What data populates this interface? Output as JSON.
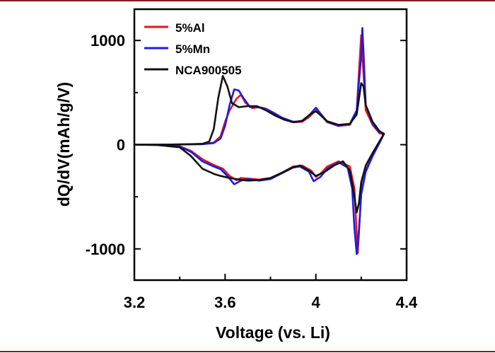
{
  "chart_data": {
    "type": "line",
    "title": "",
    "xlabel": "Voltage (vs. Li)",
    "ylabel": "dQ/dV(mAh/g/V)",
    "xlim": [
      3.2,
      4.4
    ],
    "ylim": [
      -1300,
      1300
    ],
    "xticks": [
      {
        "value": 3.2,
        "label": "3.2"
      },
      {
        "value": 3.6,
        "label": "3.6"
      },
      {
        "value": 4.0,
        "label": "4"
      },
      {
        "value": 4.4,
        "label": "4.4"
      }
    ],
    "xticks_minor": [
      3.4,
      3.8,
      4.2
    ],
    "yticks": [
      {
        "value": 1000,
        "label": "1000"
      },
      {
        "value": 0,
        "label": "0"
      },
      {
        "value": -1000,
        "label": "-1000"
      }
    ],
    "yticks_minor": [
      500,
      -500
    ],
    "legend_position": "top-left",
    "series": [
      {
        "name": "5%Al",
        "color": "#e8141c",
        "points": [
          [
            3.2,
            0
          ],
          [
            3.3,
            0
          ],
          [
            3.4,
            2
          ],
          [
            3.5,
            5
          ],
          [
            3.55,
            20
          ],
          [
            3.58,
            80
          ],
          [
            3.6,
            220
          ],
          [
            3.62,
            330
          ],
          [
            3.65,
            440
          ],
          [
            3.67,
            480
          ],
          [
            3.69,
            400
          ],
          [
            3.72,
            350
          ],
          [
            3.75,
            360
          ],
          [
            3.78,
            345
          ],
          [
            3.82,
            300
          ],
          [
            3.86,
            245
          ],
          [
            3.9,
            215
          ],
          [
            3.94,
            220
          ],
          [
            3.97,
            265
          ],
          [
            4.0,
            330
          ],
          [
            4.02,
            290
          ],
          [
            4.05,
            215
          ],
          [
            4.1,
            180
          ],
          [
            4.15,
            190
          ],
          [
            4.18,
            320
          ],
          [
            4.19,
            700
          ],
          [
            4.2,
            1050
          ],
          [
            4.21,
            680
          ],
          [
            4.22,
            330
          ],
          [
            4.25,
            190
          ],
          [
            4.28,
            110
          ],
          [
            4.3,
            100
          ],
          [
            4.3,
            100
          ],
          [
            4.28,
            20
          ],
          [
            4.25,
            -100
          ],
          [
            4.22,
            -250
          ],
          [
            4.2,
            -450
          ],
          [
            4.19,
            -850
          ],
          [
            4.185,
            -1040
          ],
          [
            4.18,
            -850
          ],
          [
            4.17,
            -420
          ],
          [
            4.15,
            -210
          ],
          [
            4.1,
            -160
          ],
          [
            4.05,
            -210
          ],
          [
            4.02,
            -280
          ],
          [
            4.0,
            -310
          ],
          [
            3.98,
            -250
          ],
          [
            3.94,
            -200
          ],
          [
            3.9,
            -210
          ],
          [
            3.85,
            -270
          ],
          [
            3.8,
            -320
          ],
          [
            3.75,
            -335
          ],
          [
            3.7,
            -325
          ],
          [
            3.67,
            -320
          ],
          [
            3.65,
            -340
          ],
          [
            3.62,
            -300
          ],
          [
            3.59,
            -230
          ],
          [
            3.55,
            -195
          ],
          [
            3.5,
            -140
          ],
          [
            3.45,
            -60
          ],
          [
            3.4,
            -15
          ],
          [
            3.3,
            -2
          ],
          [
            3.2,
            0
          ]
        ]
      },
      {
        "name": "5%Mn",
        "color": "#1c1ce6",
        "points": [
          [
            3.2,
            0
          ],
          [
            3.3,
            0
          ],
          [
            3.4,
            2
          ],
          [
            3.5,
            5
          ],
          [
            3.55,
            15
          ],
          [
            3.58,
            60
          ],
          [
            3.6,
            180
          ],
          [
            3.62,
            380
          ],
          [
            3.64,
            530
          ],
          [
            3.66,
            520
          ],
          [
            3.68,
            450
          ],
          [
            3.71,
            360
          ],
          [
            3.74,
            360
          ],
          [
            3.77,
            350
          ],
          [
            3.8,
            320
          ],
          [
            3.85,
            260
          ],
          [
            3.9,
            220
          ],
          [
            3.94,
            225
          ],
          [
            3.97,
            280
          ],
          [
            4.0,
            355
          ],
          [
            4.02,
            300
          ],
          [
            4.05,
            220
          ],
          [
            4.1,
            180
          ],
          [
            4.15,
            200
          ],
          [
            4.18,
            330
          ],
          [
            4.19,
            600
          ],
          [
            4.2,
            850
          ],
          [
            4.205,
            1120
          ],
          [
            4.21,
            900
          ],
          [
            4.22,
            380
          ],
          [
            4.25,
            200
          ],
          [
            4.28,
            120
          ],
          [
            4.3,
            105
          ],
          [
            4.3,
            105
          ],
          [
            4.28,
            15
          ],
          [
            4.25,
            -110
          ],
          [
            4.22,
            -260
          ],
          [
            4.2,
            -480
          ],
          [
            4.19,
            -820
          ],
          [
            4.18,
            -1050
          ],
          [
            4.17,
            -800
          ],
          [
            4.16,
            -420
          ],
          [
            4.14,
            -220
          ],
          [
            4.1,
            -170
          ],
          [
            4.05,
            -230
          ],
          [
            4.02,
            -310
          ],
          [
            3.99,
            -350
          ],
          [
            3.97,
            -260
          ],
          [
            3.93,
            -210
          ],
          [
            3.9,
            -220
          ],
          [
            3.85,
            -275
          ],
          [
            3.8,
            -330
          ],
          [
            3.75,
            -345
          ],
          [
            3.7,
            -330
          ],
          [
            3.67,
            -345
          ],
          [
            3.64,
            -380
          ],
          [
            3.61,
            -300
          ],
          [
            3.58,
            -235
          ],
          [
            3.55,
            -210
          ],
          [
            3.5,
            -160
          ],
          [
            3.45,
            -70
          ],
          [
            3.4,
            -18
          ],
          [
            3.3,
            -3
          ],
          [
            3.2,
            0
          ]
        ]
      },
      {
        "name": "NCA900505",
        "color": "#111111",
        "points": [
          [
            3.2,
            0
          ],
          [
            3.3,
            0
          ],
          [
            3.4,
            2
          ],
          [
            3.5,
            8
          ],
          [
            3.53,
            30
          ],
          [
            3.55,
            150
          ],
          [
            3.57,
            450
          ],
          [
            3.59,
            660
          ],
          [
            3.61,
            560
          ],
          [
            3.63,
            400
          ],
          [
            3.66,
            360
          ],
          [
            3.7,
            370
          ],
          [
            3.74,
            370
          ],
          [
            3.78,
            330
          ],
          [
            3.82,
            280
          ],
          [
            3.86,
            240
          ],
          [
            3.9,
            215
          ],
          [
            3.94,
            230
          ],
          [
            3.98,
            300
          ],
          [
            4.0,
            320
          ],
          [
            4.02,
            285
          ],
          [
            4.05,
            225
          ],
          [
            4.1,
            190
          ],
          [
            4.15,
            200
          ],
          [
            4.18,
            290
          ],
          [
            4.2,
            590
          ],
          [
            4.21,
            560
          ],
          [
            4.22,
            380
          ],
          [
            4.25,
            220
          ],
          [
            4.28,
            130
          ],
          [
            4.3,
            105
          ],
          [
            4.3,
            105
          ],
          [
            4.28,
            30
          ],
          [
            4.25,
            -80
          ],
          [
            4.22,
            -200
          ],
          [
            4.2,
            -360
          ],
          [
            4.19,
            -560
          ],
          [
            4.18,
            -650
          ],
          [
            4.17,
            -500
          ],
          [
            4.15,
            -250
          ],
          [
            4.12,
            -160
          ],
          [
            4.08,
            -200
          ],
          [
            4.04,
            -260
          ],
          [
            4.0,
            -300
          ],
          [
            3.97,
            -250
          ],
          [
            3.93,
            -200
          ],
          [
            3.9,
            -215
          ],
          [
            3.85,
            -270
          ],
          [
            3.8,
            -320
          ],
          [
            3.75,
            -340
          ],
          [
            3.7,
            -345
          ],
          [
            3.66,
            -335
          ],
          [
            3.62,
            -320
          ],
          [
            3.58,
            -300
          ],
          [
            3.55,
            -280
          ],
          [
            3.5,
            -230
          ],
          [
            3.45,
            -110
          ],
          [
            3.4,
            -25
          ],
          [
            3.3,
            -3
          ],
          [
            3.2,
            0
          ]
        ]
      }
    ]
  }
}
